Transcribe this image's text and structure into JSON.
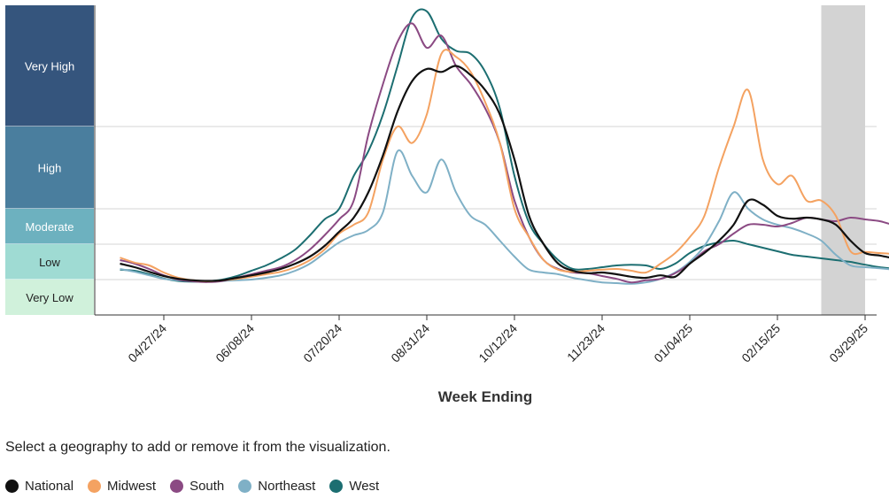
{
  "chart_data": {
    "type": "line",
    "xlabel": "Week Ending",
    "ylabel": "",
    "x_ticks": [
      "04/27/24",
      "06/08/24",
      "07/20/24",
      "08/31/24",
      "10/12/24",
      "11/23/24",
      "01/04/25",
      "02/15/25",
      "03/29/25"
    ],
    "x_range": [
      "04/06/24",
      "03/29/25"
    ],
    "shaded_region": [
      "03/08/25",
      "03/29/25"
    ],
    "levels": [
      {
        "label": "Very High",
        "color": "#35557d",
        "text_color": "#ffffff"
      },
      {
        "label": "High",
        "color": "#4a7e9e",
        "text_color": "#ffffff"
      },
      {
        "label": "Moderate",
        "color": "#6db1bf",
        "text_color": "#ffffff"
      },
      {
        "label": "Low",
        "color": "#9fdbd3",
        "text_color": "#222222"
      },
      {
        "label": "Very Low",
        "color": "#d0f1db",
        "text_color": "#222222"
      }
    ],
    "grid": true,
    "series": [
      {
        "name": "National",
        "color": "#111111",
        "values": [
          1.45,
          1.35,
          1.22,
          1.1,
          1.02,
          0.98,
          0.96,
          0.98,
          1.05,
          1.12,
          1.2,
          1.3,
          1.45,
          1.65,
          1.95,
          2.35,
          2.75,
          3.2,
          3.65,
          4.25,
          4.75,
          4.95,
          4.9,
          5.0,
          4.85,
          4.6,
          4.2,
          3.6,
          2.8,
          2.0,
          1.45,
          1.25,
          1.18,
          1.2,
          1.15,
          1.08,
          1.05,
          1.12,
          1.08,
          1.45,
          1.75,
          2.1,
          2.55,
          3.1,
          3.05,
          2.8,
          2.72,
          2.75,
          2.7,
          2.55,
          2.1,
          1.75,
          1.68,
          1.6,
          1.55,
          1.45,
          1.38,
          1.3
        ]
      },
      {
        "name": "Midwest",
        "color": "#f4a261",
        "values": [
          1.62,
          1.48,
          1.4,
          1.2,
          1.05,
          0.98,
          0.95,
          0.98,
          1.02,
          1.08,
          1.15,
          1.22,
          1.35,
          1.55,
          1.85,
          2.3,
          2.55,
          2.9,
          3.6,
          4.0,
          3.8,
          4.2,
          5.2,
          5.15,
          4.9,
          4.4,
          3.8,
          3.0,
          2.2,
          1.55,
          1.28,
          1.22,
          1.25,
          1.28,
          1.3,
          1.25,
          1.2,
          1.45,
          1.75,
          2.2,
          2.8,
          3.5,
          4.0,
          4.6,
          3.6,
          3.3,
          3.4,
          3.1,
          3.1,
          2.8,
          1.8,
          1.78,
          1.75,
          1.72,
          1.68,
          1.55,
          1.45,
          1.42
        ]
      },
      {
        "name": "South",
        "color": "#8b4a83",
        "values": [
          1.55,
          1.45,
          1.3,
          1.12,
          1.0,
          0.95,
          0.93,
          0.96,
          1.05,
          1.15,
          1.25,
          1.35,
          1.55,
          1.85,
          2.25,
          2.7,
          3.1,
          3.9,
          4.7,
          5.4,
          5.7,
          5.3,
          5.5,
          5.0,
          4.7,
          4.3,
          3.8,
          3.1,
          2.2,
          1.55,
          1.3,
          1.2,
          1.18,
          1.1,
          1.02,
          0.92,
          0.98,
          1.02,
          1.18,
          1.45,
          1.8,
          2.0,
          2.3,
          2.55,
          2.55,
          2.5,
          2.6,
          2.75,
          2.7,
          2.65,
          2.75,
          2.7,
          2.65,
          2.55,
          2.6,
          2.4,
          2.2,
          2.1
        ]
      },
      {
        "name": "Northeast",
        "color": "#7fb0c6",
        "values": [
          1.3,
          1.22,
          1.12,
          1.02,
          0.98,
          0.96,
          0.95,
          0.96,
          0.98,
          1.0,
          1.05,
          1.12,
          1.25,
          1.45,
          1.75,
          2.05,
          2.25,
          2.4,
          2.9,
          3.7,
          3.4,
          3.2,
          3.6,
          3.2,
          2.8,
          2.55,
          2.1,
          1.65,
          1.28,
          1.2,
          1.15,
          1.05,
          0.98,
          0.92,
          0.9,
          0.88,
          0.92,
          1.02,
          1.2,
          1.5,
          1.95,
          2.65,
          3.2,
          3.0,
          2.7,
          2.55,
          2.45,
          2.3,
          2.1,
          1.7,
          1.4,
          1.35,
          1.32,
          1.28,
          1.25,
          1.2,
          1.18,
          1.15
        ]
      },
      {
        "name": "West",
        "color": "#1c6e71",
        "values": [
          1.28,
          1.25,
          1.15,
          1.03,
          0.96,
          0.94,
          0.95,
          1.0,
          1.1,
          1.25,
          1.4,
          1.6,
          1.85,
          2.25,
          2.7,
          3.0,
          3.4,
          3.7,
          4.2,
          5.0,
          5.8,
          5.9,
          5.45,
          5.25,
          5.2,
          4.9,
          4.3,
          3.4,
          2.6,
          2.0,
          1.55,
          1.3,
          1.3,
          1.35,
          1.4,
          1.42,
          1.4,
          1.3,
          1.45,
          1.75,
          1.95,
          2.05,
          2.1,
          2.0,
          1.9,
          1.8,
          1.7,
          1.65,
          1.6,
          1.55,
          1.5,
          1.42,
          1.35,
          1.3,
          1.22,
          1.18,
          1.15,
          1.12
        ]
      }
    ]
  },
  "ui": {
    "instructions": "Select a geography to add or remove it from the visualization.",
    "legend_items": [
      "National",
      "Midwest",
      "South",
      "Northeast",
      "West"
    ]
  }
}
